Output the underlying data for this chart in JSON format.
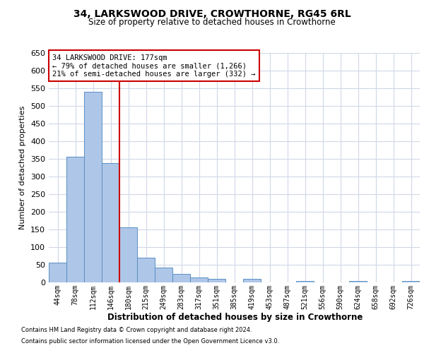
{
  "title": "34, LARKSWOOD DRIVE, CROWTHORNE, RG45 6RL",
  "subtitle": "Size of property relative to detached houses in Crowthorne",
  "xlabel": "Distribution of detached houses by size in Crowthorne",
  "ylabel": "Number of detached properties",
  "footnote1": "Contains HM Land Registry data © Crown copyright and database right 2024.",
  "footnote2": "Contains public sector information licensed under the Open Government Licence v3.0.",
  "annotation_line1": "34 LARKSWOOD DRIVE: 177sqm",
  "annotation_line2": "← 79% of detached houses are smaller (1,266)",
  "annotation_line3": "21% of semi-detached houses are larger (332) →",
  "bin_labels": [
    "44sqm",
    "78sqm",
    "112sqm",
    "146sqm",
    "180sqm",
    "215sqm",
    "249sqm",
    "283sqm",
    "317sqm",
    "351sqm",
    "385sqm",
    "419sqm",
    "453sqm",
    "487sqm",
    "521sqm",
    "556sqm",
    "590sqm",
    "624sqm",
    "658sqm",
    "692sqm",
    "726sqm"
  ],
  "bar_values": [
    57,
    355,
    540,
    338,
    157,
    70,
    42,
    25,
    15,
    10,
    0,
    10,
    0,
    0,
    5,
    0,
    0,
    5,
    0,
    0,
    5
  ],
  "bar_color": "#aec6e8",
  "bar_edge_color": "#5a8fc2",
  "vline_x": 3.5,
  "vline_color": "#cc0000",
  "ylim": [
    0,
    650
  ],
  "yticks": [
    0,
    50,
    100,
    150,
    200,
    250,
    300,
    350,
    400,
    450,
    500,
    550,
    600,
    650
  ],
  "background_color": "#ffffff",
  "grid_color": "#d0d8e8",
  "title_fontsize": 10,
  "subtitle_fontsize": 8.5,
  "ylabel_fontsize": 8,
  "xlabel_fontsize": 8.5,
  "tick_fontsize": 7,
  "annotation_fontsize": 7.5,
  "footnote_fontsize": 6
}
